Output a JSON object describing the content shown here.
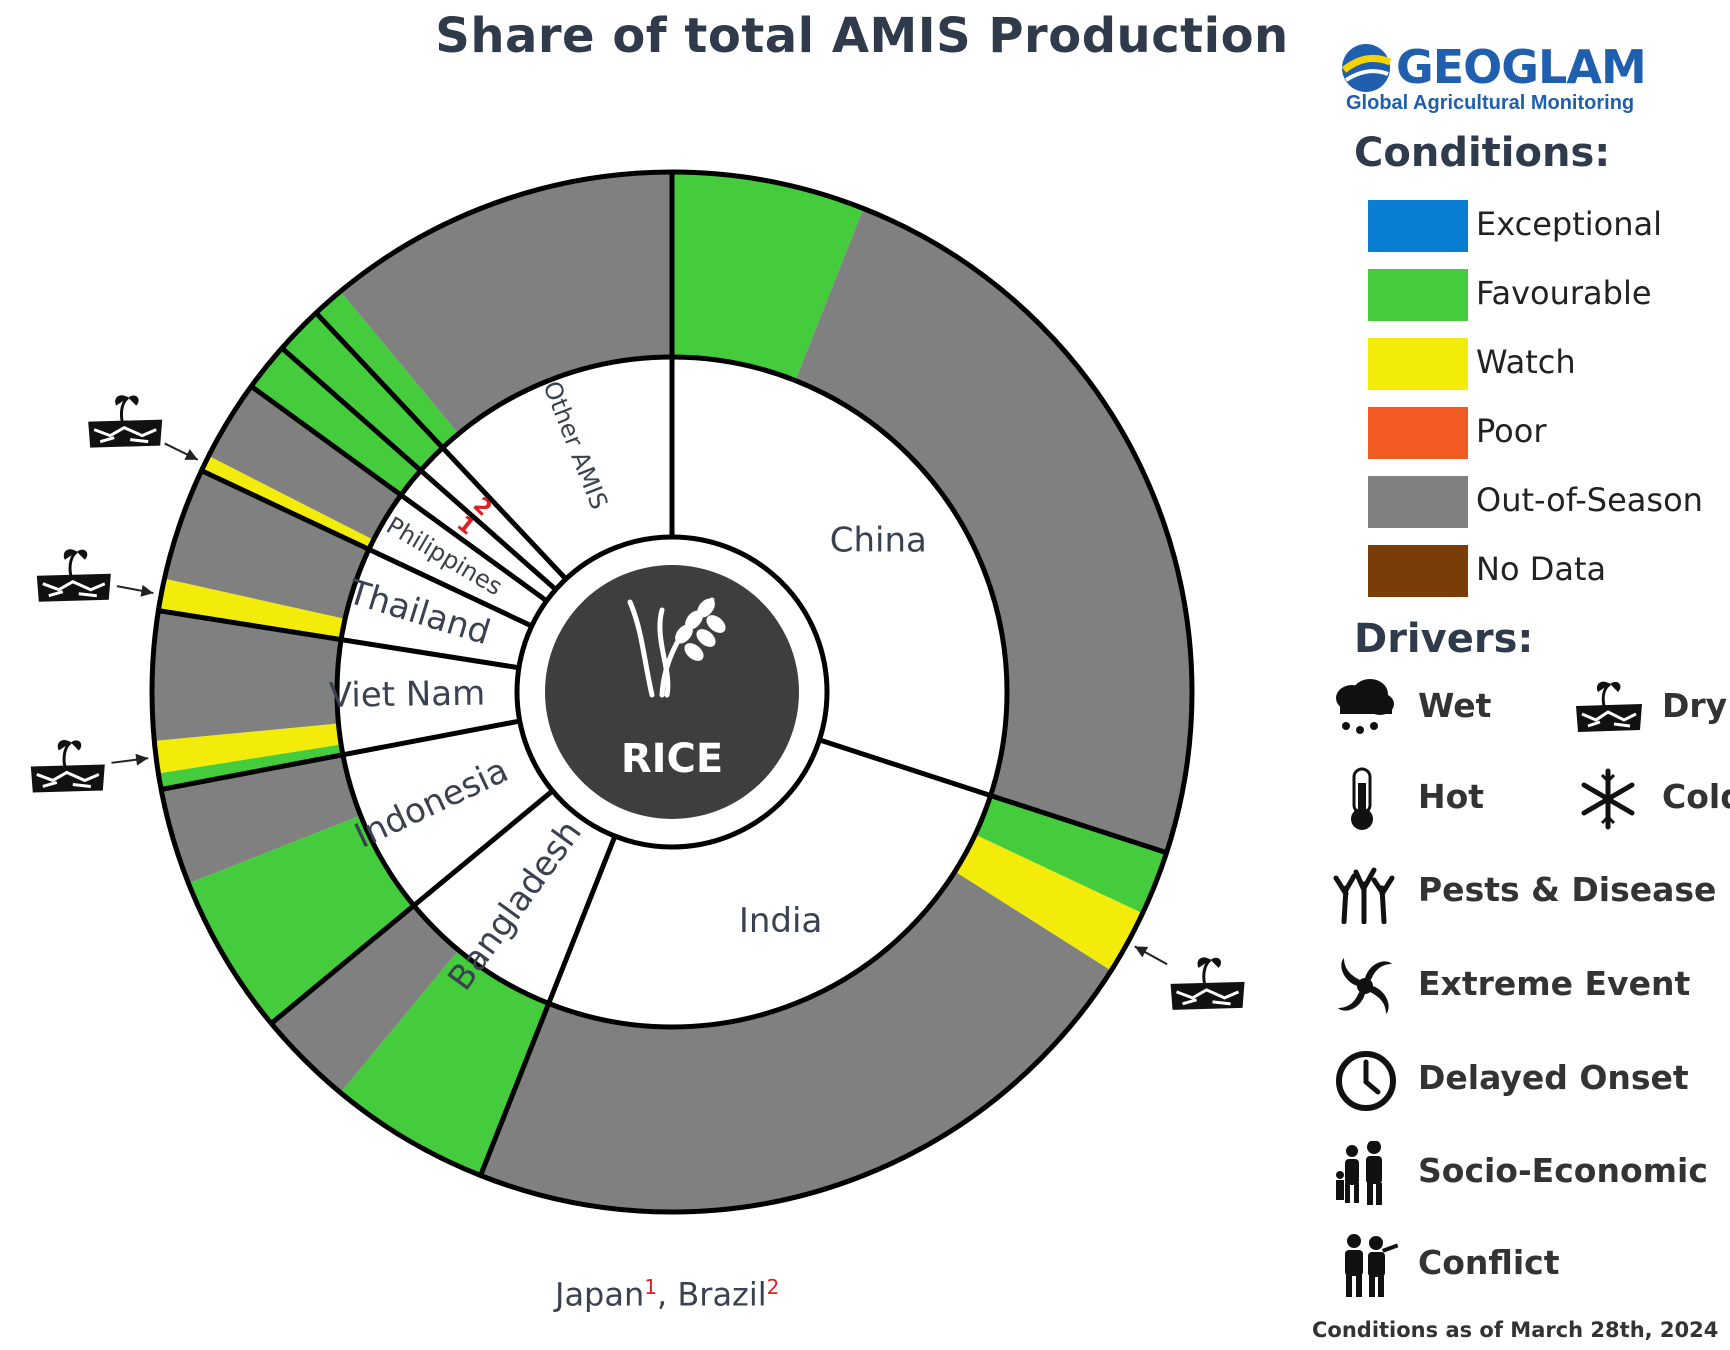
{
  "chart_data": {
    "type": "donut",
    "title": "Share of total AMIS Production",
    "center_label": "RICE",
    "conditions_legend": [
      {
        "name": "Exceptional",
        "color": "#0a7fd1"
      },
      {
        "name": "Favourable",
        "color": "#44cc3d"
      },
      {
        "name": "Watch",
        "color": "#f3ec0b"
      },
      {
        "name": "Poor",
        "color": "#f15a22"
      },
      {
        "name": "Out-of-Season",
        "color": "#808080"
      },
      {
        "name": "No Data",
        "color": "#7a3d0a"
      }
    ],
    "countries": [
      {
        "name": "China",
        "share": 30.0
      },
      {
        "name": "India",
        "share": 26.0
      },
      {
        "name": "Bangladesh",
        "share": 8.0
      },
      {
        "name": "Indonesia",
        "share": 8.0
      },
      {
        "name": "Viet Nam",
        "share": 5.5
      },
      {
        "name": "Thailand",
        "share": 4.5
      },
      {
        "name": "Philippines",
        "share": 3.0
      },
      {
        "name": "Japan",
        "share": 1.5
      },
      {
        "name": "Brazil",
        "share": 1.5
      },
      {
        "name": "Other AMIS",
        "share": 12.0
      }
    ],
    "outer_ring": [
      {
        "country": "China",
        "condition": "Favourable",
        "share": 6.0
      },
      {
        "country": "China",
        "condition": "Out-of-Season",
        "share": 24.0
      },
      {
        "country": "India",
        "condition": "Favourable",
        "share": 2.0
      },
      {
        "country": "India",
        "condition": "Watch",
        "share": 2.0,
        "driver": "Dry"
      },
      {
        "country": "India",
        "condition": "Out-of-Season",
        "share": 22.0
      },
      {
        "country": "Bangladesh",
        "condition": "Favourable",
        "share": 5.0
      },
      {
        "country": "Bangladesh",
        "condition": "Out-of-Season",
        "share": 3.0
      },
      {
        "country": "Indonesia",
        "condition": "Favourable",
        "share": 5.0
      },
      {
        "country": "Indonesia",
        "condition": "Out-of-Season",
        "share": 3.0
      },
      {
        "country": "Viet Nam",
        "condition": "Favourable",
        "share": 0.5
      },
      {
        "country": "Viet Nam",
        "condition": "Watch",
        "share": 1.0,
        "driver": "Dry"
      },
      {
        "country": "Viet Nam",
        "condition": "Out-of-Season",
        "share": 4.0
      },
      {
        "country": "Thailand",
        "condition": "Watch",
        "share": 1.0,
        "driver": "Dry"
      },
      {
        "country": "Thailand",
        "condition": "Out-of-Season",
        "share": 3.5
      },
      {
        "country": "Philippines",
        "condition": "Watch",
        "share": 0.5,
        "driver": "Dry"
      },
      {
        "country": "Philippines",
        "condition": "Out-of-Season",
        "share": 2.5
      },
      {
        "country": "Japan",
        "condition": "Favourable",
        "share": 1.5
      },
      {
        "country": "Brazil",
        "condition": "Favourable",
        "share": 1.5
      },
      {
        "country": "Other AMIS",
        "condition": "Favourable",
        "share": 1.0
      },
      {
        "country": "Other AMIS",
        "condition": "Out-of-Season",
        "share": 11.0
      }
    ],
    "footnote_marks": [
      {
        "country": "Japan",
        "mark": "1"
      },
      {
        "country": "Brazil",
        "mark": "2"
      }
    ]
  },
  "logo": {
    "name": "GEOGLAM",
    "subtitle": "Global Agricultural Monitoring"
  },
  "legend": {
    "conditions_title": "Conditions:",
    "drivers_title": "Drivers:",
    "drivers": [
      "Wet",
      "Dry",
      "Hot",
      "Cold",
      "Pests & Disease",
      "Extreme Event",
      "Delayed Onset",
      "Socio-Economic",
      "Conflict"
    ]
  },
  "footnote": {
    "first": "Japan",
    "first_mark": "1",
    "sep": ", ",
    "second": "Brazil",
    "second_mark": "2"
  },
  "as_of": "Conditions as of March 28th, 2024"
}
